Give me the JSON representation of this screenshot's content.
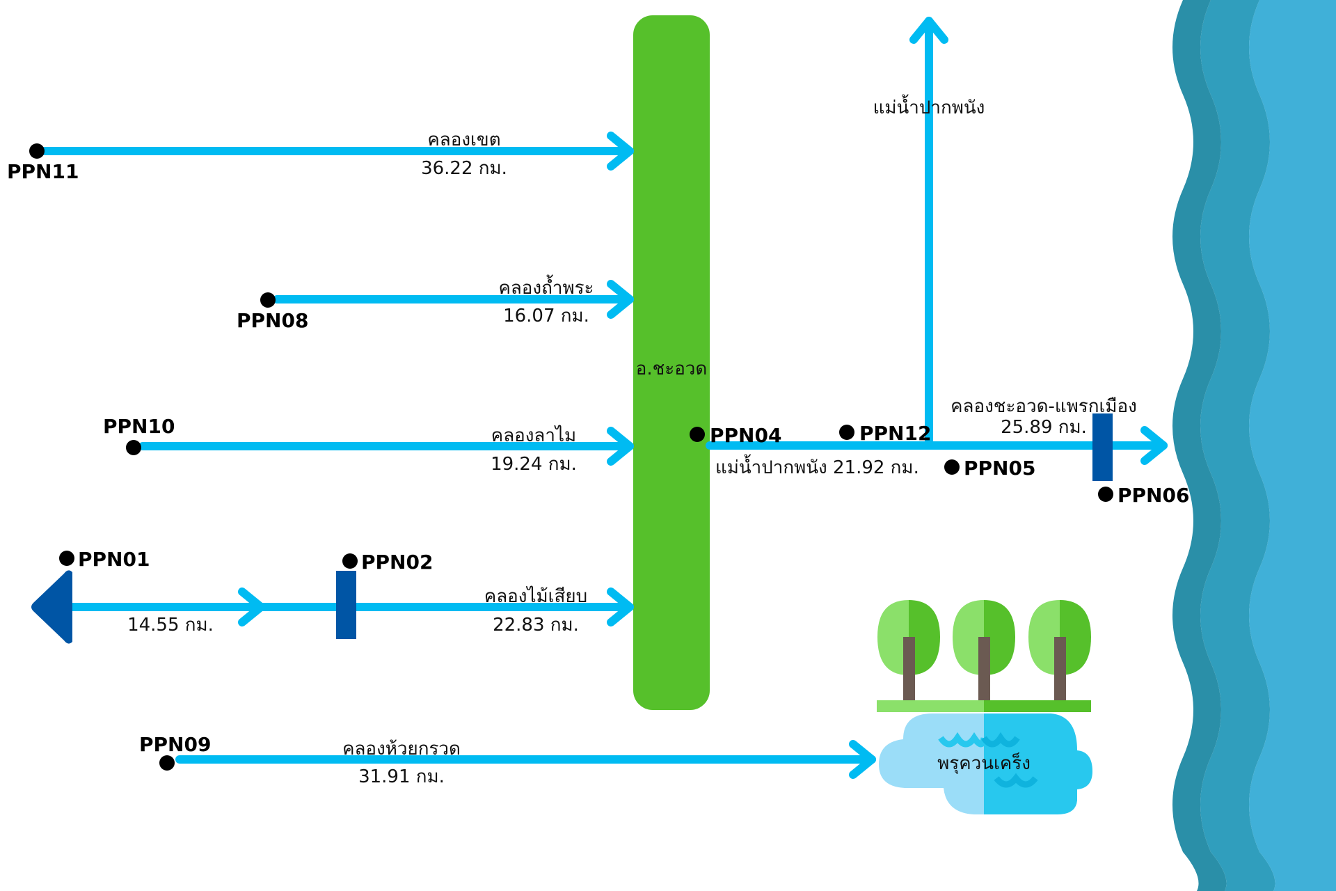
{
  "district": {
    "label": "อ.ชะอวด"
  },
  "peat_swamp": {
    "label": "พรุควนเคร็ง"
  },
  "main_river_north": {
    "label": "แม่น้ำปากพนัง"
  },
  "main_river_reach": {
    "label": "แม่น้ำปากพนัง 21.92 กม."
  },
  "canals": [
    {
      "name": "คลองเขต",
      "length": "36.22 กม."
    },
    {
      "name": "คลองถ้ำพระ",
      "length": "16.07 กม."
    },
    {
      "name": "คลองลาไม",
      "length": "19.24 กม."
    },
    {
      "name": "คลองไม้เสียบ",
      "length": "22.83 กม."
    },
    {
      "name": "",
      "length": "14.55 กม."
    },
    {
      "name": "คลองห้วยกรวด",
      "length": "31.91 กม."
    },
    {
      "name": "คลองชะอวด-แพรกเมือง",
      "length": "25.89 กม."
    }
  ],
  "stations": {
    "ppn01": "PPN01",
    "ppn02": "PPN02",
    "ppn04": "PPN04",
    "ppn05": "PPN05",
    "ppn06": "PPN06",
    "ppn08": "PPN08",
    "ppn09": "PPN09",
    "ppn10": "PPN10",
    "ppn11": "PPN11",
    "ppn12": "PPN12"
  },
  "colors": {
    "canal": "#00BBF2",
    "district": "#56C02B",
    "gate": "#0055A5",
    "sea_dark": "#2A8FA8",
    "sea_mid": "#309EBD",
    "sea_light": "#40B0D8"
  }
}
